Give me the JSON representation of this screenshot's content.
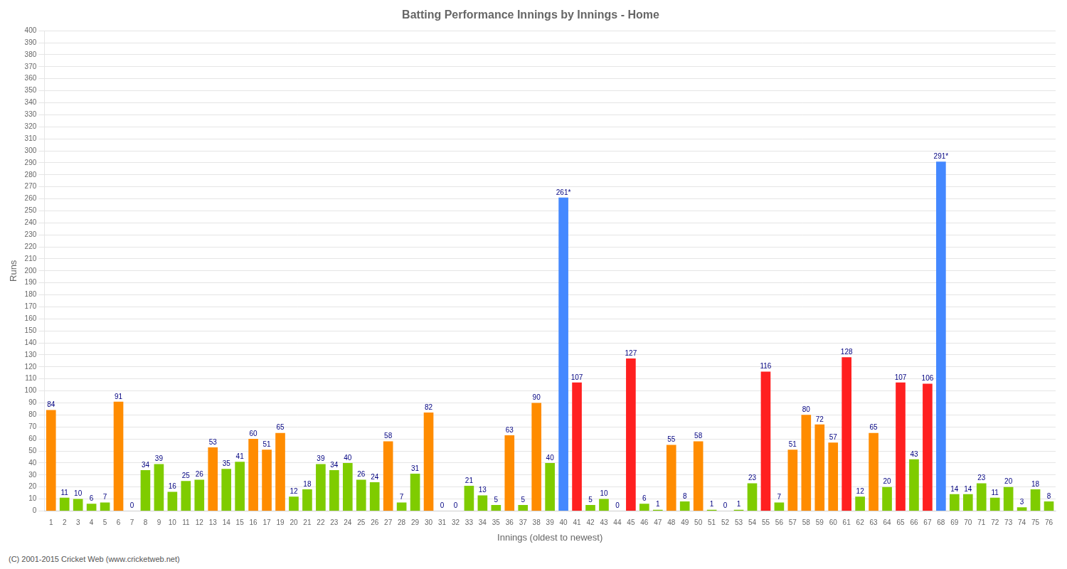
{
  "chart_data": {
    "type": "bar",
    "title": "Batting Performance Innings by Innings - Home",
    "x_label": "Innings (oldest to newest)",
    "y_label": "Runs",
    "footnote": "(C) 2001-2015 Cricket Web (www.cricketweb.net)",
    "categories": [
      "1",
      "2",
      "3",
      "4",
      "5",
      "6",
      "7",
      "8",
      "9",
      "10",
      "11",
      "12",
      "13",
      "14",
      "15",
      "16",
      "17",
      "19",
      "20",
      "21",
      "22",
      "23",
      "24",
      "25",
      "26",
      "27",
      "28",
      "29",
      "30",
      "31",
      "32",
      "33",
      "34",
      "35",
      "36",
      "37",
      "38",
      "39",
      "40",
      "41",
      "42",
      "43",
      "44",
      "45",
      "46",
      "47",
      "48",
      "49",
      "50",
      "51",
      "52",
      "53",
      "54",
      "55",
      "56",
      "57",
      "58",
      "59",
      "60",
      "61",
      "62",
      "63",
      "64",
      "65",
      "66",
      "67",
      "68",
      "69",
      "70",
      "71",
      "72",
      "73",
      "74",
      "75",
      "76"
    ],
    "values": [
      84,
      11,
      10,
      6,
      7,
      91,
      0,
      34,
      39,
      16,
      25,
      26,
      53,
      35,
      41,
      60,
      51,
      65,
      12,
      18,
      39,
      34,
      40,
      26,
      24,
      58,
      7,
      31,
      82,
      0,
      0,
      21,
      13,
      5,
      63,
      5,
      90,
      40,
      261,
      107,
      5,
      10,
      0,
      127,
      6,
      1,
      55,
      8,
      58,
      1,
      0,
      1,
      23,
      116,
      7,
      51,
      80,
      72,
      57,
      128,
      12,
      65,
      20,
      107,
      43,
      106,
      291,
      14,
      14,
      23,
      11,
      20,
      3,
      18,
      8
    ],
    "value_labels": [
      "84",
      "11",
      "10",
      "6",
      "7",
      "91",
      "0",
      "34",
      "39",
      "16",
      "25",
      "26",
      "53",
      "35",
      "41",
      "60",
      "51",
      "65",
      "12",
      "18",
      "39",
      "34",
      "40",
      "26",
      "24",
      "58",
      "7",
      "31",
      "82",
      "0",
      "0",
      "21",
      "13",
      "5",
      "63",
      "5",
      "90",
      "40",
      "261*",
      "107",
      "5",
      "10",
      "0",
      "127",
      "6",
      "1",
      "55",
      "8",
      "58",
      "1",
      "0",
      "1",
      "23",
      "116",
      "7",
      "51",
      "80",
      "72",
      "57",
      "128",
      "12",
      "65",
      "20",
      "107",
      "43",
      "106",
      "291*",
      "14",
      "14",
      "23",
      "11",
      "20",
      "3",
      "18",
      "8"
    ],
    "colors": [
      "#FF8C00",
      "#7FCC00",
      "#7FCC00",
      "#7FCC00",
      "#7FCC00",
      "#FF8C00",
      "#7FCC00",
      "#7FCC00",
      "#7FCC00",
      "#7FCC00",
      "#7FCC00",
      "#7FCC00",
      "#FF8C00",
      "#7FCC00",
      "#7FCC00",
      "#FF8C00",
      "#FF8C00",
      "#FF8C00",
      "#7FCC00",
      "#7FCC00",
      "#7FCC00",
      "#7FCC00",
      "#7FCC00",
      "#7FCC00",
      "#7FCC00",
      "#FF8C00",
      "#7FCC00",
      "#7FCC00",
      "#FF8C00",
      "#7FCC00",
      "#7FCC00",
      "#7FCC00",
      "#7FCC00",
      "#7FCC00",
      "#FF8C00",
      "#7FCC00",
      "#FF8C00",
      "#7FCC00",
      "#4488FF",
      "#FF2020",
      "#7FCC00",
      "#7FCC00",
      "#7FCC00",
      "#FF2020",
      "#7FCC00",
      "#7FCC00",
      "#FF8C00",
      "#7FCC00",
      "#FF8C00",
      "#7FCC00",
      "#7FCC00",
      "#7FCC00",
      "#7FCC00",
      "#FF2020",
      "#7FCC00",
      "#FF8C00",
      "#FF8C00",
      "#FF8C00",
      "#FF8C00",
      "#FF2020",
      "#7FCC00",
      "#FF8C00",
      "#7FCC00",
      "#FF2020",
      "#7FCC00",
      "#FF2020",
      "#4488FF",
      "#7FCC00",
      "#7FCC00",
      "#7FCC00",
      "#7FCC00",
      "#7FCC00",
      "#7FCC00",
      "#7FCC00",
      "#7FCC00"
    ],
    "ylim": [
      0,
      400
    ],
    "yticks": [
      0,
      10,
      20,
      30,
      40,
      50,
      60,
      70,
      80,
      90,
      100,
      110,
      120,
      130,
      140,
      150,
      160,
      170,
      180,
      190,
      200,
      210,
      220,
      230,
      240,
      250,
      260,
      270,
      280,
      290,
      300,
      310,
      320,
      330,
      340,
      350,
      360,
      370,
      380,
      390,
      400
    ],
    "grid": true,
    "data_labels": true
  }
}
